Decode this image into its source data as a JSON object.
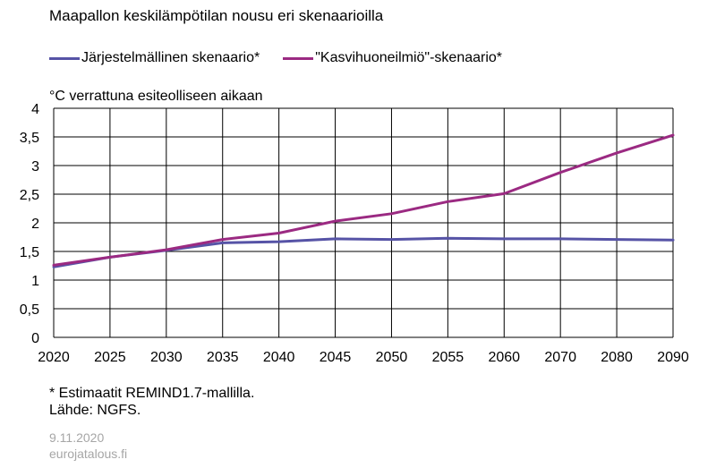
{
  "colors": {
    "series1": "#5653a6",
    "series2": "#9b2a82",
    "grid": "#000000",
    "footer": "#a6a6a6"
  },
  "chart_data": {
    "type": "line",
    "title": "Maapallon keskilämpötilan nousu eri skenaarioilla",
    "ylabel": "°C verrattuna  esiteolliseen aikaan",
    "xlabel": "",
    "categories": [
      "2020",
      "2025",
      "2030",
      "2035",
      "2040",
      "2045",
      "2050",
      "2055",
      "2060",
      "2070",
      "2080",
      "2090"
    ],
    "ylim": [
      0,
      4
    ],
    "yticks": [
      0,
      0.5,
      1,
      1.5,
      2,
      2.5,
      3,
      3.5,
      4
    ],
    "ytick_labels": [
      "0",
      "0,5",
      "1",
      "1,5",
      "2",
      "2,5",
      "3",
      "3,5",
      "4"
    ],
    "grid": true,
    "legend": "top",
    "series": [
      {
        "name": "Järjestelmällinen skenaario*",
        "color": "#5653a6",
        "values": [
          1.23,
          1.4,
          1.52,
          1.65,
          1.67,
          1.72,
          1.71,
          1.73,
          1.72,
          1.72,
          1.71,
          1.7
        ]
      },
      {
        "name": "\"Kasvihuoneilmiö\"-skenaario*",
        "color": "#9b2a82",
        "values": [
          1.26,
          1.4,
          1.53,
          1.71,
          1.82,
          2.03,
          2.16,
          2.37,
          2.51,
          2.88,
          3.22,
          3.53
        ]
      }
    ]
  },
  "footnote": {
    "line1": "* Estimaatit REMIND1.7-mallilla.",
    "line2": "Lähde: NGFS."
  },
  "footer": {
    "date": "9.11.2020",
    "site": "eurojatalous.fi"
  }
}
